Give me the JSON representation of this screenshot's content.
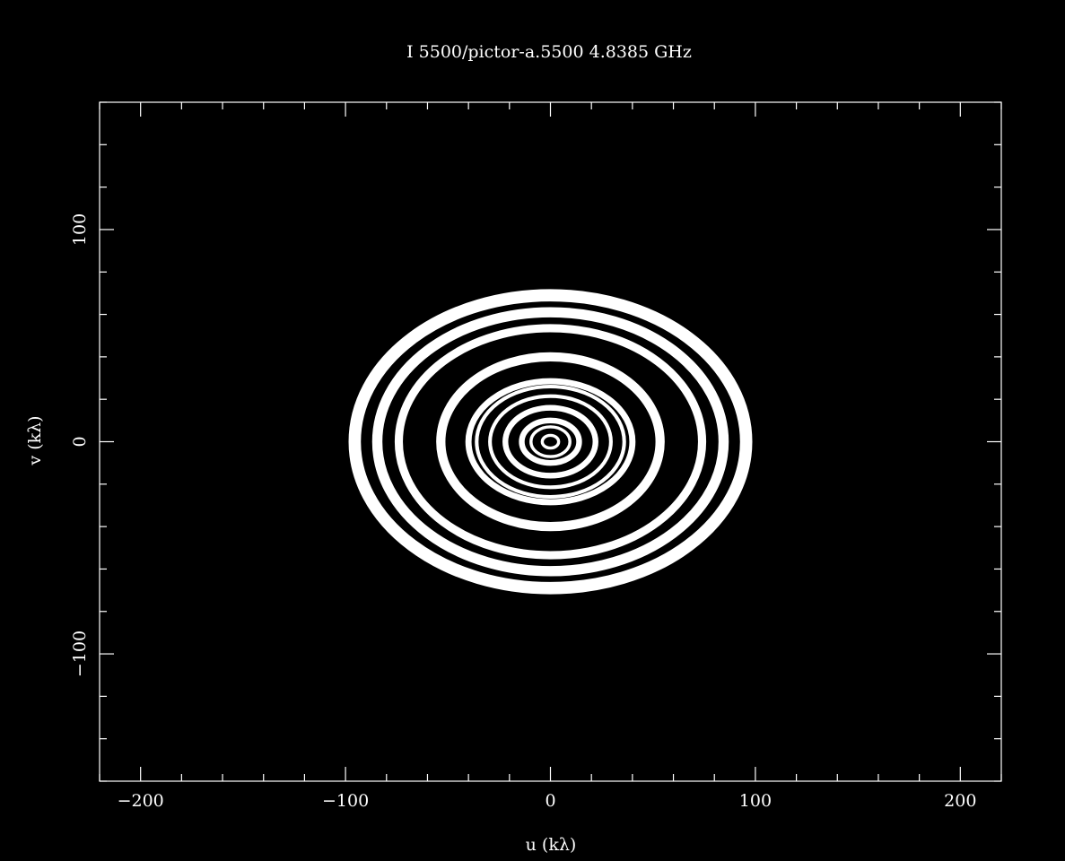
{
  "chart_data": {
    "type": "scatter",
    "title": "I 5500/pictor-a.5500 4.8385 GHz",
    "xlabel": "u (kλ)",
    "ylabel": "v (kλ)",
    "xlim": [
      -220,
      220
    ],
    "ylim": [
      -160,
      160
    ],
    "x_ticks": [
      -200,
      -100,
      0,
      100,
      200
    ],
    "x_tick_labels": [
      "−200",
      "−100",
      "0",
      "100",
      "200"
    ],
    "y_ticks": [
      -100,
      0,
      100
    ],
    "y_tick_labels": [
      "−100",
      "0",
      "100"
    ],
    "x_minor_step": 20,
    "y_minor_step": 20,
    "grid": false,
    "colors": {
      "background": "#000000",
      "foreground": "#ffffff"
    },
    "uv_tracks": [
      {
        "a_u": 95.5,
        "b_v": 69.0,
        "width": 6.0
      },
      {
        "a_u": 84.5,
        "b_v": 61.0,
        "width": 5.0
      },
      {
        "a_u": 74.0,
        "b_v": 53.5,
        "width": 4.0
      },
      {
        "a_u": 53.5,
        "b_v": 40.0,
        "width": 4.5
      },
      {
        "a_u": 40.0,
        "b_v": 28.5,
        "width": 3.0
      },
      {
        "a_u": 36.0,
        "b_v": 26.0,
        "width": 1.8
      },
      {
        "a_u": 29.5,
        "b_v": 21.5,
        "width": 1.8
      },
      {
        "a_u": 22.0,
        "b_v": 16.0,
        "width": 2.8
      },
      {
        "a_u": 14.0,
        "b_v": 10.0,
        "width": 2.8
      },
      {
        "a_u": 9.5,
        "b_v": 7.0,
        "width": 1.5
      },
      {
        "a_u": 4.0,
        "b_v": 3.0,
        "width": 1.5
      }
    ]
  }
}
